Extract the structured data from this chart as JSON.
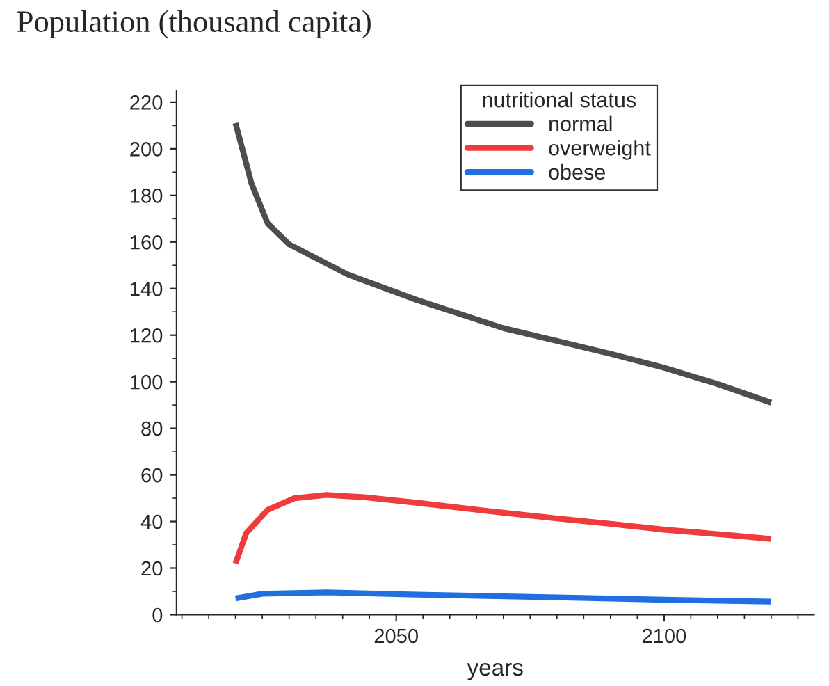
{
  "chart_data": {
    "type": "line",
    "title": "Population (thousand capita)",
    "xlabel": "years",
    "legend_title": "nutritional status",
    "legend": "top right",
    "grid": false,
    "marker": "none",
    "line_style": "solid",
    "xlim": [
      2009,
      2128
    ],
    "xticks": [
      2050,
      2100
    ],
    "ylim": [
      0,
      225
    ],
    "yticks": [
      0,
      20,
      40,
      60,
      80,
      100,
      120,
      140,
      160,
      180,
      200,
      220
    ],
    "series": [
      {
        "name": "normal",
        "color": "#4d4d4d",
        "x": [
          2020,
          2023,
          2026,
          2030,
          2041,
          2054,
          2070,
          2080,
          2090,
          2100,
          2110,
          2120
        ],
        "values": [
          211,
          185,
          168,
          159,
          146,
          135,
          123,
          117.5,
          112,
          106,
          99,
          91
        ]
      },
      {
        "name": "overweight",
        "color": "#ef3b3b",
        "x": [
          2020,
          2022,
          2026,
          2031,
          2037,
          2044,
          2054,
          2067,
          2080,
          2090,
          2100,
          2113,
          2120
        ],
        "values": [
          22,
          35,
          45,
          50,
          51.4,
          50.4,
          48,
          44.5,
          41.3,
          39,
          36.5,
          34,
          32.5
        ]
      },
      {
        "name": "obese",
        "color": "#1f6fe0",
        "x": [
          2020,
          2025,
          2037,
          2054,
          2080,
          2100,
          2120
        ],
        "values": [
          7,
          9,
          9.6,
          8.6,
          7.4,
          6.4,
          5.6
        ]
      }
    ]
  }
}
